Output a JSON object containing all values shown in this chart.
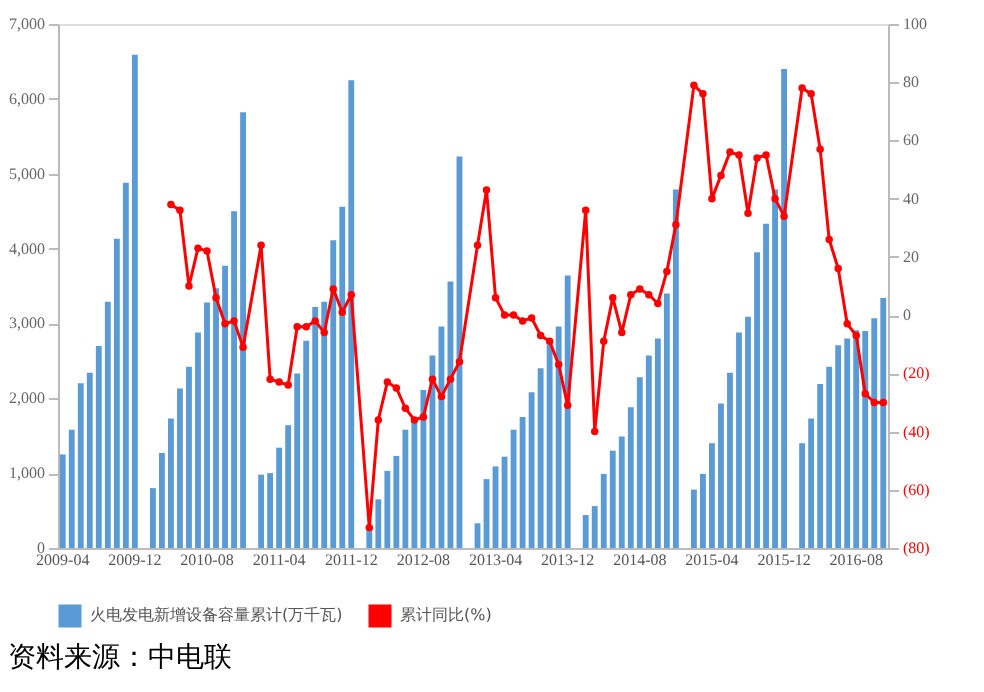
{
  "chart_data": {
    "type": "bar",
    "categories": [
      "2009-04",
      null,
      null,
      null,
      null,
      null,
      null,
      null,
      "2009-12",
      null,
      null,
      null,
      null,
      null,
      null,
      null,
      "2010-08",
      null,
      null,
      null,
      null,
      null,
      null,
      null,
      "2011-04",
      null,
      null,
      null,
      null,
      null,
      null,
      null,
      "2011-12",
      null,
      null,
      null,
      null,
      null,
      null,
      null,
      "2012-08",
      null,
      null,
      null,
      null,
      null,
      null,
      null,
      "2013-04",
      null,
      null,
      null,
      null,
      null,
      null,
      null,
      "2013-12",
      null,
      null,
      null,
      null,
      null,
      null,
      null,
      "2014-08",
      null,
      null,
      null,
      null,
      null,
      null,
      null,
      "2015-04",
      null,
      null,
      null,
      null,
      null,
      null,
      null,
      "2015-12",
      null,
      null,
      null,
      null,
      null,
      null,
      null,
      "2016-08",
      null,
      null,
      null
    ],
    "series": [
      {
        "name": "火电发电新增设备容量累计(万千瓦)",
        "type": "bar",
        "color": "#5b9bd5",
        "values": [
          1250,
          1580,
          2200,
          2340,
          2700,
          3290,
          4130,
          4880,
          6590,
          null,
          800,
          1270,
          1730,
          2130,
          2420,
          2880,
          3280,
          3470,
          3770,
          4500,
          5820,
          null,
          980,
          1000,
          1340,
          1640,
          2330,
          2770,
          3220,
          3290,
          4110,
          4560,
          6250,
          null,
          300,
          650,
          1030,
          1230,
          1580,
          1720,
          2110,
          2570,
          2960,
          3560,
          5230,
          null,
          330,
          920,
          1090,
          1220,
          1580,
          1750,
          2080,
          2400,
          2720,
          2960,
          3640,
          null,
          440,
          560,
          990,
          1300,
          1490,
          1880,
          2280,
          2570,
          2800,
          3400,
          4790,
          null,
          780,
          990,
          1400,
          1930,
          2340,
          2880,
          3090,
          3950,
          4330,
          4790,
          6400,
          null,
          1400,
          1730,
          2190,
          2420,
          2710,
          2800,
          2910,
          2900,
          3070,
          3340
        ]
      },
      {
        "name": "累计同比(%)",
        "type": "line",
        "axis": "y2",
        "color": "#ff0000",
        "values": [
          null,
          null,
          null,
          null,
          null,
          null,
          null,
          null,
          null,
          null,
          null,
          null,
          38,
          36,
          10,
          23,
          22,
          6,
          -3,
          -2,
          -11,
          null,
          24,
          -22,
          -23,
          -24,
          -4,
          -4,
          -2,
          -6,
          9,
          1,
          7,
          null,
          -73,
          -36,
          -23,
          -25,
          -32,
          -36,
          -35,
          -22,
          -28,
          -22,
          -16,
          null,
          24,
          43,
          6,
          0,
          0,
          -2,
          -1,
          -7,
          -9,
          -17,
          -31,
          null,
          36,
          -40,
          -9,
          6,
          -6,
          7,
          9,
          7,
          4,
          15,
          31,
          null,
          79,
          76,
          40,
          48,
          56,
          55,
          35,
          54,
          55,
          40,
          34,
          null,
          78,
          76,
          57,
          26,
          16,
          -3,
          -7,
          -27,
          -30,
          -30
        ]
      }
    ],
    "ylim": [
      0,
      7000
    ],
    "yticks": [
      0,
      {
        "value": 1000,
        "label": "1,000"
      },
      {
        "value": 2000,
        "label": "2,000"
      },
      {
        "value": 3000,
        "label": "3,000"
      },
      {
        "value": 4000,
        "label": "4,000"
      },
      {
        "value": 5000,
        "label": "5,000"
      },
      {
        "value": 6000,
        "label": "6,000"
      },
      {
        "value": 7000,
        "label": "7,000"
      }
    ],
    "y2lim": [
      -80,
      100
    ],
    "y2ticks": [
      {
        "value": -80,
        "label": "(80)"
      },
      {
        "value": -60,
        "label": "(60)"
      },
      {
        "value": -40,
        "label": "(40)"
      },
      {
        "value": -20,
        "label": "(20)"
      },
      0,
      20,
      40,
      60,
      80,
      100
    ],
    "marker": "circle",
    "grid": false,
    "legend": "bottom",
    "annotations": [
      "资料来源：中电联"
    ]
  }
}
